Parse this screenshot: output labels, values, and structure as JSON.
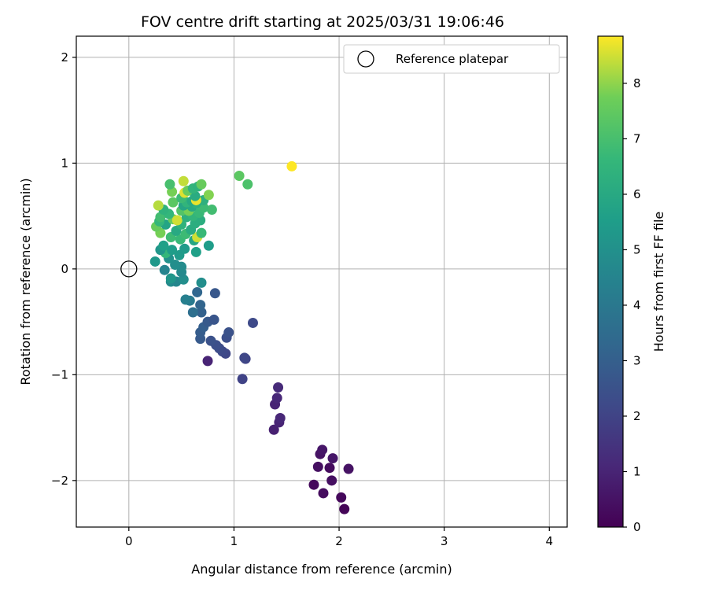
{
  "chart_data": {
    "type": "scatter",
    "title": "FOV centre drift starting at 2025/03/31 19:06:46",
    "xlabel": "Angular distance from reference (arcmin)",
    "ylabel": "Rotation from reference (arcmin)",
    "xlim": [
      -0.5,
      4.17
    ],
    "ylim": [
      -2.44,
      2.2
    ],
    "xticks": [
      0,
      1,
      2,
      3,
      4
    ],
    "yticks": [
      -2,
      -1,
      0,
      1,
      2
    ],
    "xtick_labels": [
      "0",
      "1",
      "2",
      "3",
      "4"
    ],
    "ytick_labels": [
      "−2",
      "−1",
      "0",
      "1",
      "2"
    ],
    "grid": true,
    "legend": {
      "position": "top-right",
      "label": "Reference platepar"
    },
    "reference_point": {
      "x": 0,
      "y": 0
    },
    "colorbar": {
      "label": "Hours from first FF file",
      "range": [
        0,
        8.85
      ],
      "ticks": [
        0,
        1,
        2,
        3,
        4,
        5,
        6,
        7,
        8
      ],
      "tick_labels": [
        "0",
        "1",
        "2",
        "3",
        "4",
        "5",
        "6",
        "7",
        "8"
      ],
      "colormap": "viridis"
    },
    "points": [
      {
        "x": 2.05,
        "y": -2.27,
        "c": 0.1
      },
      {
        "x": 2.02,
        "y": -2.16,
        "c": 0.2
      },
      {
        "x": 1.85,
        "y": -2.12,
        "c": 0.3
      },
      {
        "x": 1.76,
        "y": -2.04,
        "c": 0.2
      },
      {
        "x": 1.93,
        "y": -2.0,
        "c": 0.4
      },
      {
        "x": 2.09,
        "y": -1.89,
        "c": 0.5
      },
      {
        "x": 1.91,
        "y": -1.88,
        "c": 0.3
      },
      {
        "x": 1.8,
        "y": -1.87,
        "c": 0.4
      },
      {
        "x": 1.94,
        "y": -1.79,
        "c": 0.6
      },
      {
        "x": 1.82,
        "y": -1.75,
        "c": 0.5
      },
      {
        "x": 1.84,
        "y": -1.71,
        "c": 0.6
      },
      {
        "x": 1.38,
        "y": -1.52,
        "c": 0.9
      },
      {
        "x": 1.43,
        "y": -1.45,
        "c": 1.0
      },
      {
        "x": 1.44,
        "y": -1.41,
        "c": 1.1
      },
      {
        "x": 1.39,
        "y": -1.28,
        "c": 1.0
      },
      {
        "x": 1.41,
        "y": -1.22,
        "c": 1.1
      },
      {
        "x": 1.42,
        "y": -1.12,
        "c": 1.2
      },
      {
        "x": 1.08,
        "y": -1.04,
        "c": 2.0
      },
      {
        "x": 0.75,
        "y": -0.87,
        "c": 1.0
      },
      {
        "x": 1.11,
        "y": -0.85,
        "c": 2.0
      },
      {
        "x": 1.1,
        "y": -0.84,
        "c": 2.1
      },
      {
        "x": 0.92,
        "y": -0.8,
        "c": 2.1
      },
      {
        "x": 0.89,
        "y": -0.78,
        "c": 2.2
      },
      {
        "x": 0.86,
        "y": -0.75,
        "c": 2.3
      },
      {
        "x": 0.83,
        "y": -0.72,
        "c": 2.4
      },
      {
        "x": 0.78,
        "y": -0.68,
        "c": 2.5
      },
      {
        "x": 0.93,
        "y": -0.65,
        "c": 2.4
      },
      {
        "x": 0.95,
        "y": -0.6,
        "c": 2.5
      },
      {
        "x": 0.68,
        "y": -0.66,
        "c": 2.8
      },
      {
        "x": 0.68,
        "y": -0.6,
        "c": 2.9
      },
      {
        "x": 0.71,
        "y": -0.55,
        "c": 3.0
      },
      {
        "x": 0.75,
        "y": -0.5,
        "c": 2.8
      },
      {
        "x": 1.18,
        "y": -0.51,
        "c": 2.2
      },
      {
        "x": 0.81,
        "y": -0.48,
        "c": 2.6
      },
      {
        "x": 0.69,
        "y": -0.41,
        "c": 3.1
      },
      {
        "x": 0.61,
        "y": -0.41,
        "c": 3.6
      },
      {
        "x": 0.68,
        "y": -0.34,
        "c": 3.2
      },
      {
        "x": 0.58,
        "y": -0.3,
        "c": 4.1
      },
      {
        "x": 0.54,
        "y": -0.29,
        "c": 4.3
      },
      {
        "x": 0.65,
        "y": -0.22,
        "c": 3.3
      },
      {
        "x": 0.82,
        "y": -0.23,
        "c": 2.7
      },
      {
        "x": 0.69,
        "y": -0.13,
        "c": 4.9
      },
      {
        "x": 0.4,
        "y": -0.12,
        "c": 4.8
      },
      {
        "x": 0.45,
        "y": -0.12,
        "c": 4.6
      },
      {
        "x": 0.52,
        "y": -0.1,
        "c": 4.9
      },
      {
        "x": 0.4,
        "y": -0.09,
        "c": 5.2
      },
      {
        "x": 0.5,
        "y": -0.03,
        "c": 4.7
      },
      {
        "x": 0.34,
        "y": -0.01,
        "c": 4.5
      },
      {
        "x": 0.5,
        "y": 0.02,
        "c": 4.8
      },
      {
        "x": 0.44,
        "y": 0.04,
        "c": 4.9
      },
      {
        "x": 0.25,
        "y": 0.07,
        "c": 5.3
      },
      {
        "x": 0.38,
        "y": 0.1,
        "c": 5.0
      },
      {
        "x": 0.48,
        "y": 0.13,
        "c": 5.4
      },
      {
        "x": 0.35,
        "y": 0.15,
        "c": 6.6
      },
      {
        "x": 0.64,
        "y": 0.16,
        "c": 5.6
      },
      {
        "x": 0.3,
        "y": 0.18,
        "c": 5.2
      },
      {
        "x": 0.41,
        "y": 0.18,
        "c": 5.5
      },
      {
        "x": 0.53,
        "y": 0.19,
        "c": 5.4
      },
      {
        "x": 0.33,
        "y": 0.22,
        "c": 5.6
      },
      {
        "x": 0.76,
        "y": 0.22,
        "c": 5.5
      },
      {
        "x": 0.49,
        "y": 0.28,
        "c": 6.7
      },
      {
        "x": 0.62,
        "y": 0.27,
        "c": 5.9
      },
      {
        "x": 0.65,
        "y": 0.3,
        "c": 8.5
      },
      {
        "x": 0.4,
        "y": 0.3,
        "c": 6.8
      },
      {
        "x": 0.3,
        "y": 0.34,
        "c": 7.8
      },
      {
        "x": 0.54,
        "y": 0.33,
        "c": 6.8
      },
      {
        "x": 0.69,
        "y": 0.34,
        "c": 6.7
      },
      {
        "x": 0.45,
        "y": 0.36,
        "c": 6.0
      },
      {
        "x": 0.59,
        "y": 0.37,
        "c": 6.1
      },
      {
        "x": 0.26,
        "y": 0.4,
        "c": 7.6
      },
      {
        "x": 0.35,
        "y": 0.42,
        "c": 5.8
      },
      {
        "x": 0.5,
        "y": 0.42,
        "c": 6.4
      },
      {
        "x": 0.63,
        "y": 0.43,
        "c": 6.2
      },
      {
        "x": 0.29,
        "y": 0.45,
        "c": 6.6
      },
      {
        "x": 0.68,
        "y": 0.46,
        "c": 6.2
      },
      {
        "x": 0.42,
        "y": 0.47,
        "c": 7.6
      },
      {
        "x": 0.46,
        "y": 0.46,
        "c": 8.5
      },
      {
        "x": 0.3,
        "y": 0.49,
        "c": 6.9
      },
      {
        "x": 0.55,
        "y": 0.49,
        "c": 6.3
      },
      {
        "x": 0.61,
        "y": 0.5,
        "c": 6.5
      },
      {
        "x": 0.38,
        "y": 0.52,
        "c": 6.6
      },
      {
        "x": 0.67,
        "y": 0.53,
        "c": 6.7
      },
      {
        "x": 0.5,
        "y": 0.55,
        "c": 7.2
      },
      {
        "x": 0.57,
        "y": 0.55,
        "c": 7.8
      },
      {
        "x": 0.33,
        "y": 0.56,
        "c": 6.4
      },
      {
        "x": 0.79,
        "y": 0.56,
        "c": 6.9
      },
      {
        "x": 0.71,
        "y": 0.58,
        "c": 6.8
      },
      {
        "x": 0.6,
        "y": 0.59,
        "c": 6.0
      },
      {
        "x": 0.52,
        "y": 0.6,
        "c": 5.9
      },
      {
        "x": 0.28,
        "y": 0.6,
        "c": 8.3
      },
      {
        "x": 0.64,
        "y": 0.62,
        "c": 6.3
      },
      {
        "x": 0.42,
        "y": 0.63,
        "c": 7.4
      },
      {
        "x": 0.55,
        "y": 0.63,
        "c": 6.5
      },
      {
        "x": 0.6,
        "y": 0.64,
        "c": 6.0
      },
      {
        "x": 0.71,
        "y": 0.65,
        "c": 6.3
      },
      {
        "x": 0.64,
        "y": 0.65,
        "c": 8.7
      },
      {
        "x": 0.5,
        "y": 0.67,
        "c": 6.8
      },
      {
        "x": 0.63,
        "y": 0.69,
        "c": 6.1
      },
      {
        "x": 0.76,
        "y": 0.7,
        "c": 7.9
      },
      {
        "x": 0.53,
        "y": 0.72,
        "c": 8.6
      },
      {
        "x": 0.41,
        "y": 0.73,
        "c": 7.8
      },
      {
        "x": 0.56,
        "y": 0.74,
        "c": 7.6
      },
      {
        "x": 0.61,
        "y": 0.76,
        "c": 6.5
      },
      {
        "x": 0.66,
        "y": 0.78,
        "c": 6.4
      },
      {
        "x": 0.39,
        "y": 0.8,
        "c": 7.0
      },
      {
        "x": 0.69,
        "y": 0.8,
        "c": 7.6
      },
      {
        "x": 0.52,
        "y": 0.83,
        "c": 8.4
      },
      {
        "x": 1.05,
        "y": 0.88,
        "c": 7.4
      },
      {
        "x": 1.13,
        "y": 0.8,
        "c": 7.1
      },
      {
        "x": 1.55,
        "y": 0.97,
        "c": 8.85
      }
    ]
  }
}
